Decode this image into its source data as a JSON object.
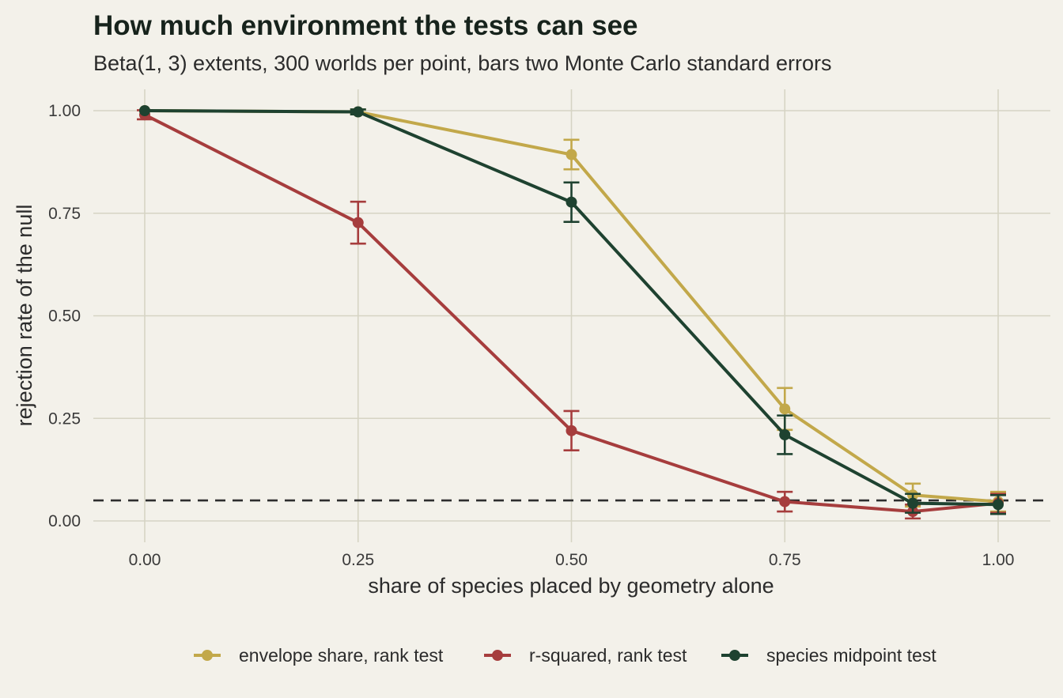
{
  "chart_data": {
    "type": "line",
    "title": "How much environment the tests can see",
    "subtitle": "Beta(1, 3) extents, 300 worlds per point, bars two Monte Carlo standard errors",
    "xlabel": "share of species placed by geometry alone",
    "ylabel": "rejection rate of the null",
    "xlim": [
      0,
      1
    ],
    "ylim": [
      0,
      1
    ],
    "x_ticks": [
      "0.00",
      "0.25",
      "0.50",
      "0.75",
      "1.00"
    ],
    "y_ticks": [
      "0.00",
      "0.25",
      "0.50",
      "0.75",
      "1.00"
    ],
    "reference_line": {
      "y": 0.05,
      "style": "dashed"
    },
    "grid": true,
    "legend_position": "bottom",
    "series": [
      {
        "name": "envelope share, rank test",
        "color": "#c2a84a",
        "x": [
          0,
          0.25,
          0.5,
          0.75,
          0.9,
          1
        ],
        "y": [
          1.0,
          0.997,
          0.893,
          0.273,
          0.063,
          0.047
        ],
        "err": [
          0.0,
          0.006,
          0.036,
          0.051,
          0.028,
          0.024
        ]
      },
      {
        "name": "r-squared, rank test",
        "color": "#a63d3d",
        "x": [
          0,
          0.25,
          0.5,
          0.75,
          0.9,
          1
        ],
        "y": [
          0.99,
          0.727,
          0.22,
          0.047,
          0.023,
          0.043
        ],
        "err": [
          0.011,
          0.051,
          0.048,
          0.024,
          0.017,
          0.023
        ]
      },
      {
        "name": "species midpoint test",
        "color": "#1e4230",
        "x": [
          0,
          0.25,
          0.5,
          0.75,
          0.9,
          1
        ],
        "y": [
          1.0,
          0.997,
          0.777,
          0.21,
          0.043,
          0.04
        ],
        "err": [
          0.0,
          0.006,
          0.048,
          0.047,
          0.023,
          0.023
        ]
      }
    ]
  }
}
